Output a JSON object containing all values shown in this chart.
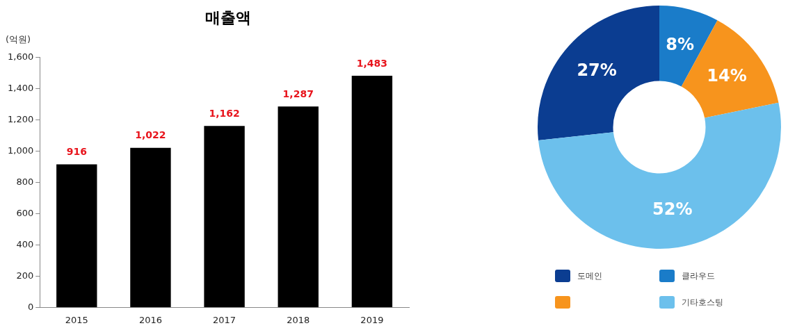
{
  "chart_data": [
    {
      "type": "bar",
      "title": "매출액",
      "ylabel": "(억원)",
      "categories": [
        "2015",
        "2016",
        "2017",
        "2018",
        "2019"
      ],
      "values": [
        916,
        1022,
        1162,
        1287,
        1483
      ],
      "color": "#000000",
      "value_labels": [
        "916",
        "1,022",
        "1,162",
        "1,287",
        "1,483"
      ],
      "ylim": [
        0,
        1600
      ],
      "yticks": [
        0,
        {
          "value": 200,
          "label": "200"
        },
        {
          "value": 400,
          "label": "400"
        },
        {
          "value": 600,
          "label": "600"
        },
        {
          "value": 800,
          "label": "800"
        },
        {
          "value": 1000,
          "label": "1,000"
        },
        {
          "value": 1200,
          "label": "1,200"
        },
        {
          "value": 1400,
          "label": "1,400"
        },
        {
          "value": 1600,
          "label": "1,600"
        }
      ],
      "grid": false,
      "legend": false
    },
    {
      "type": "donut",
      "categories": [
        "도메인",
        "클라우드",
        null,
        "기타호스팅"
      ],
      "values": [
        27,
        8,
        14,
        52
      ],
      "colors": [
        "#0b3d91",
        "#1a7cc9",
        "#f7941d",
        "#6cc0ec"
      ],
      "value_labels": [
        "27%",
        "8%",
        "14%",
        "52%"
      ],
      "legend": "bottom"
    }
  ]
}
